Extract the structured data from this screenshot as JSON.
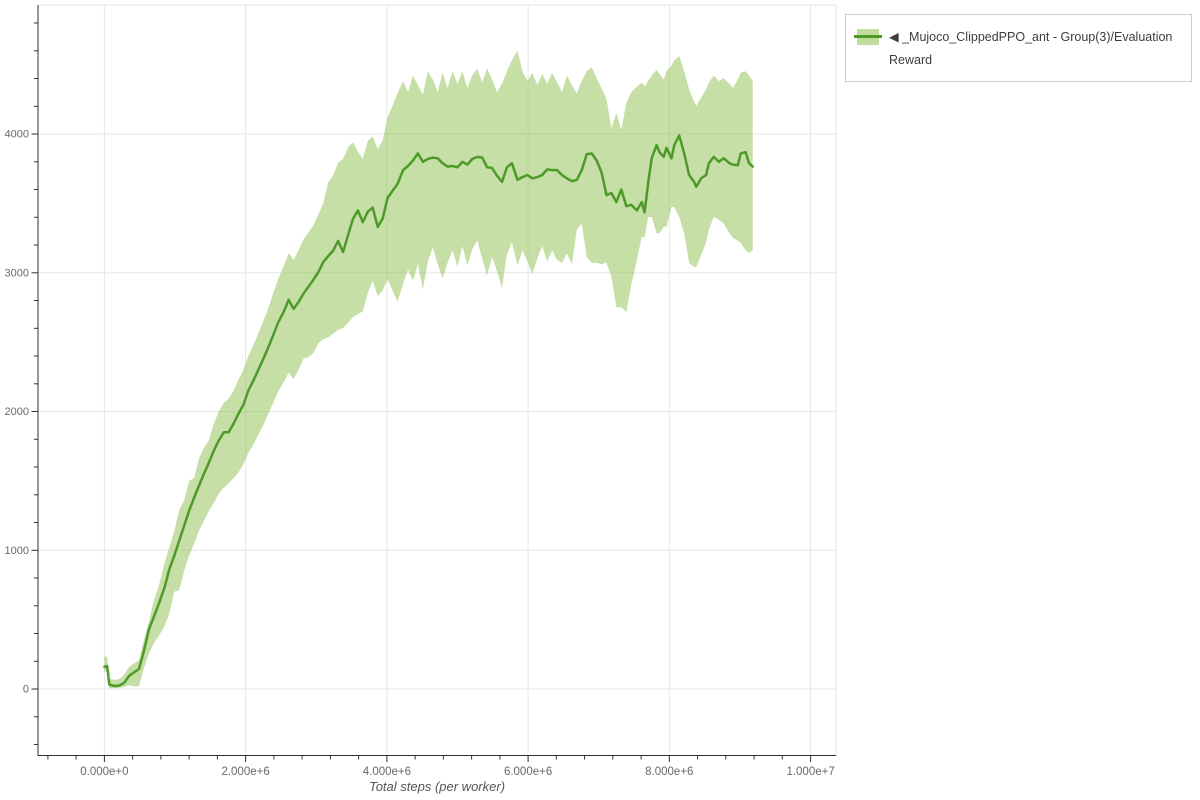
{
  "figure": {
    "legend": {
      "series_label": "◀ _Mujoco_ClippedPPO_ant - Group(3)/Evaluation Reward"
    },
    "x_axis": {
      "label": "Total steps (per worker)",
      "ticks": [
        {
          "value": 0,
          "label": "0.000e+0"
        },
        {
          "value": 2,
          "label": "2.000e+6"
        },
        {
          "value": 4,
          "label": "4.000e+6"
        },
        {
          "value": 6,
          "label": "6.000e+6"
        },
        {
          "value": 8,
          "label": "8.000e+6"
        },
        {
          "value": 10,
          "label": "1.000e+7"
        }
      ],
      "minor_step": 0.4
    },
    "y_axis": {
      "ticks": [
        {
          "value": 0,
          "label": "0"
        },
        {
          "value": 1000,
          "label": "1000"
        },
        {
          "value": 2000,
          "label": "2000"
        },
        {
          "value": 3000,
          "label": "3000"
        },
        {
          "value": 4000,
          "label": "4000"
        }
      ],
      "minor_step": 200
    },
    "colors": {
      "line": "#4e9a28",
      "band": "#8cbf4d",
      "band_opacity": 0.5,
      "grid": "#e6e6e6",
      "outline": "#e6e6e6",
      "axis": "#303030",
      "tick_label": "#696969",
      "axis_label": "#555555",
      "legend_border": "#cccccc",
      "legend_text": "#3d3d3d"
    }
  },
  "chart_data": {
    "type": "line",
    "title": "",
    "xlabel": "Total steps (per worker)",
    "ylabel": "",
    "grid": true,
    "legend_position": "top-right",
    "x_units": "steps (values below in millions of steps)",
    "x_range_millions": [
      -0.94,
      10.36
    ],
    "y_range": [
      -479,
      4930
    ],
    "series": [
      {
        "name": "_Mujoco_ClippedPPO_ant - Group(3)/Evaluation Reward",
        "x_millions": [
          0,
          0.04,
          0.07,
          0.14,
          0.21,
          0.28,
          0.35,
          0.42,
          0.49,
          0.56,
          0.63,
          0.7,
          0.77,
          0.85,
          0.92,
          0.99,
          1.06,
          1.13,
          1.2,
          1.27,
          1.34,
          1.41,
          1.48,
          1.55,
          1.62,
          1.69,
          1.76,
          1.83,
          1.9,
          1.97,
          2.04,
          2.11,
          2.18,
          2.25,
          2.32,
          2.39,
          2.46,
          2.54,
          2.61,
          2.68,
          2.75,
          2.82,
          2.89,
          2.96,
          3.03,
          3.1,
          3.17,
          3.24,
          3.31,
          3.38,
          3.45,
          3.52,
          3.59,
          3.66,
          3.73,
          3.8,
          3.87,
          3.94,
          4.01,
          4.08,
          4.15,
          4.23,
          4.3,
          4.37,
          4.44,
          4.51,
          4.58,
          4.65,
          4.72,
          4.79,
          4.86,
          4.93,
          5,
          5.07,
          5.14,
          5.21,
          5.28,
          5.35,
          5.42,
          5.49,
          5.56,
          5.63,
          5.7,
          5.77,
          5.85,
          5.92,
          5.99,
          6.06,
          6.13,
          6.2,
          6.27,
          6.34,
          6.41,
          6.48,
          6.55,
          6.62,
          6.69,
          6.76,
          6.83,
          6.9,
          6.97,
          7.04,
          7.11,
          7.18,
          7.25,
          7.32,
          7.39,
          7.46,
          7.54,
          7.61,
          7.65,
          7.7,
          7.75,
          7.82,
          7.86,
          7.92,
          7.96,
          8.03,
          8.07,
          8.14,
          8.21,
          8.28,
          8.35,
          8.38,
          8.45,
          8.52,
          8.56,
          8.63,
          8.7,
          8.77,
          8.85,
          8.9,
          8.97,
          9.01,
          9.08,
          9.13,
          9.18
        ],
        "mean": [
          160,
          165,
          32,
          22,
          25,
          45,
          95,
          120,
          145,
          274,
          430,
          520,
          614,
          729,
          865,
          960,
          1069,
          1177,
          1285,
          1379,
          1466,
          1552,
          1632,
          1718,
          1791,
          1850,
          1852,
          1913,
          1986,
          2050,
          2152,
          2224,
          2300,
          2380,
          2460,
          2550,
          2640,
          2720,
          2805,
          2740,
          2790,
          2850,
          2900,
          2950,
          3005,
          3077,
          3120,
          3160,
          3230,
          3150,
          3270,
          3390,
          3450,
          3365,
          3440,
          3470,
          3330,
          3390,
          3540,
          3590,
          3640,
          3740,
          3770,
          3810,
          3860,
          3800,
          3820,
          3830,
          3825,
          3790,
          3765,
          3770,
          3760,
          3800,
          3780,
          3820,
          3835,
          3830,
          3760,
          3755,
          3700,
          3655,
          3760,
          3790,
          3670,
          3690,
          3705,
          3680,
          3690,
          3705,
          3745,
          3740,
          3740,
          3705,
          3680,
          3660,
          3670,
          3740,
          3855,
          3860,
          3810,
          3725,
          3560,
          3575,
          3510,
          3600,
          3480,
          3490,
          3450,
          3510,
          3435,
          3650,
          3825,
          3920,
          3870,
          3835,
          3900,
          3825,
          3920,
          3990,
          3860,
          3705,
          3655,
          3620,
          3680,
          3705,
          3790,
          3835,
          3800,
          3825,
          3790,
          3780,
          3775,
          3860,
          3870,
          3790,
          3765
        ],
        "band_low": [
          125,
          128,
          5,
          6,
          8,
          15,
          28,
          18,
          22,
          150,
          255,
          330,
          382,
          452,
          545,
          702,
          712,
          852,
          962,
          1048,
          1141,
          1213,
          1285,
          1343,
          1408,
          1452,
          1482,
          1521,
          1562,
          1622,
          1702,
          1762,
          1832,
          1902,
          1982,
          2062,
          2142,
          2212,
          2282,
          2232,
          2302,
          2382,
          2392,
          2422,
          2492,
          2522,
          2534,
          2562,
          2590,
          2602,
          2638,
          2682,
          2702,
          2722,
          2852,
          2942,
          2832,
          2872,
          2952,
          2872,
          2792,
          2922,
          3022,
          2942,
          3062,
          2882,
          3082,
          3182,
          3062,
          2962,
          3072,
          3162,
          3042,
          3192,
          3052,
          3172,
          3232,
          3102,
          2982,
          3112,
          3012,
          2892,
          3132,
          3222,
          3052,
          3162,
          3082,
          2992,
          3102,
          3192,
          3082,
          3162,
          3092,
          3072,
          3142,
          3062,
          3312,
          3355,
          3112,
          3072,
          3072,
          3062,
          3072,
          2972,
          2752,
          2752,
          2715,
          2912,
          3092,
          3262,
          3252,
          3402,
          3402,
          3285,
          3285,
          3332,
          3332,
          3475,
          3475,
          3402,
          3285,
          3072,
          3042,
          3042,
          3125,
          3222,
          3312,
          3402,
          3382,
          3355,
          3285,
          3252,
          3232,
          3215,
          3162,
          3142,
          3162
        ],
        "band_high": [
          232,
          235,
          75,
          66,
          70,
          105,
          160,
          185,
          208,
          352,
          485,
          640,
          742,
          905,
          1022,
          1140,
          1292,
          1360,
          1500,
          1522,
          1661,
          1740,
          1792,
          1912,
          2002,
          2062,
          2092,
          2152,
          2232,
          2302,
          2402,
          2482,
          2562,
          2652,
          2742,
          2852,
          2952,
          3052,
          3142,
          3092,
          3162,
          3242,
          3292,
          3342,
          3422,
          3502,
          3652,
          3702,
          3792,
          3822,
          3902,
          3942,
          3872,
          3822,
          3952,
          3982,
          3892,
          3952,
          4122,
          4202,
          4292,
          4382,
          4302,
          4422,
          4352,
          4282,
          4452,
          4392,
          4302,
          4442,
          4332,
          4452,
          4362,
          4452,
          4332,
          4422,
          4472,
          4372,
          4472,
          4392,
          4302,
          4362,
          4452,
          4532,
          4602,
          4452,
          4382,
          4442,
          4352,
          4432,
          4362,
          4442,
          4372,
          4302,
          4422,
          4352,
          4292,
          4382,
          4452,
          4482,
          4402,
          4332,
          4252,
          4042,
          4152,
          4032,
          4222,
          4302,
          4342,
          4372,
          4342,
          4382,
          4422,
          4462,
          4432,
          4392,
          4452,
          4492,
          4532,
          4562,
          4452,
          4322,
          4232,
          4202,
          4262,
          4322,
          4372,
          4422,
          4382,
          4402,
          4362,
          4332,
          4392,
          4442,
          4452,
          4422,
          4382
        ]
      }
    ]
  }
}
